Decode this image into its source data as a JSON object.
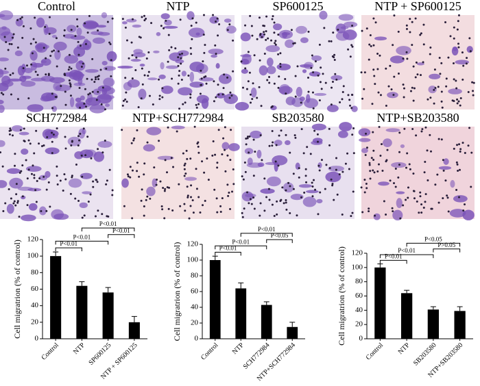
{
  "panels": [
    "Control",
    "NTP",
    "SP600125",
    "NTP + SP600125",
    "SCH772984",
    "NTP+SCH772984",
    "SB203580",
    "NTP+SB203580"
  ],
  "chart_data": [
    {
      "type": "bar",
      "ylabel": "Cell migratrion (% of control)",
      "categories": [
        "Control",
        "NTP",
        "SP600125",
        "NTP + SP600125"
      ],
      "values": [
        100,
        64,
        56,
        20
      ],
      "errors": [
        5,
        5,
        6,
        7
      ],
      "color": "#000000",
      "ylim": [
        0,
        120
      ],
      "yticks": [
        0,
        20,
        40,
        60,
        80,
        100,
        120
      ],
      "annotations": [
        {
          "between": [
            "Control",
            "NTP"
          ],
          "label": "P<0.01"
        },
        {
          "between": [
            "Control",
            "SP600125"
          ],
          "label": "P<0.01"
        },
        {
          "between": [
            "SP600125",
            "NTP + SP600125"
          ],
          "label": "P<0.01"
        },
        {
          "between": [
            "NTP",
            "NTP + SP600125"
          ],
          "label": "P<0.01"
        }
      ]
    },
    {
      "type": "bar",
      "ylabel": "Cell migratrion (% of control)",
      "categories": [
        "Control",
        "NTP",
        "SCH772984",
        "NTP+SCH772984"
      ],
      "values": [
        100,
        64,
        43,
        15
      ],
      "errors": [
        5,
        7,
        4,
        6
      ],
      "color": "#000000",
      "ylim": [
        0,
        120
      ],
      "yticks": [
        0,
        20,
        40,
        60,
        80,
        100,
        120
      ],
      "annotations": [
        {
          "between": [
            "Control",
            "NTP"
          ],
          "label": "P<0.01"
        },
        {
          "between": [
            "Control",
            "SCH772984"
          ],
          "label": "P<0.01"
        },
        {
          "between": [
            "SCH772984",
            "NTP+SCH772984"
          ],
          "label": "P<0.05"
        },
        {
          "between": [
            "NTP",
            "NTP+SCH772984"
          ],
          "label": "P<0.01"
        }
      ]
    },
    {
      "type": "bar",
      "ylabel": "Cell migratrion (% of control)",
      "categories": [
        "Control",
        "NTP",
        "SB203580",
        "NTP+SB203580"
      ],
      "values": [
        100,
        64,
        41,
        39
      ],
      "errors": [
        5,
        4,
        4,
        6
      ],
      "color": "#000000",
      "ylim": [
        0,
        120
      ],
      "yticks": [
        0,
        20,
        40,
        60,
        80,
        100,
        120
      ],
      "annotations": [
        {
          "between": [
            "Control",
            "NTP"
          ],
          "label": "P<0.01"
        },
        {
          "between": [
            "Control",
            "SB203580"
          ],
          "label": "P<0.01"
        },
        {
          "between": [
            "SB203580",
            "NTP+SB203580"
          ],
          "label": "P>0.05"
        },
        {
          "between": [
            "NTP",
            "NTP+SB203580"
          ],
          "label": "P<0.05"
        }
      ]
    }
  ]
}
